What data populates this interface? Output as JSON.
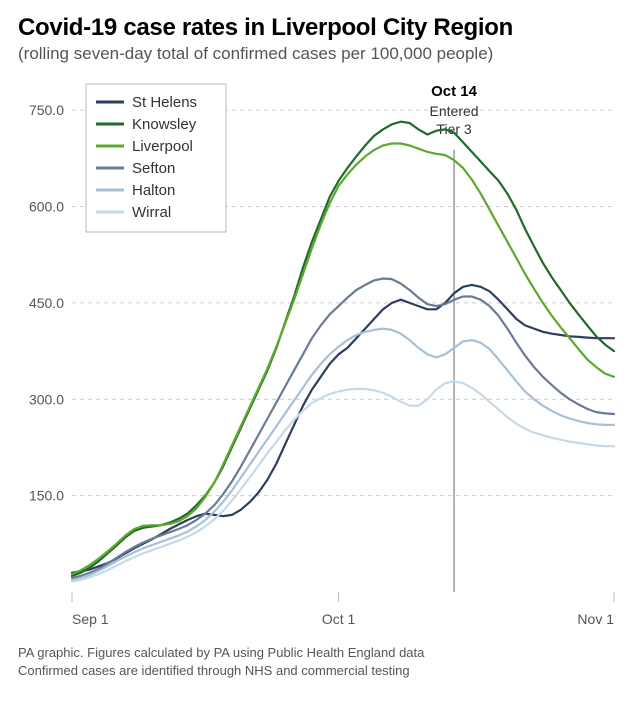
{
  "title": "Covid-19 case rates in Liverpool City Region",
  "subtitle": "(rolling seven-day total of confirmed cases per 100,000 people)",
  "chart": {
    "type": "line",
    "background_color": "#ffffff",
    "grid_color": "#cccccc",
    "axis_color": "#bbbbbb",
    "x_index_range": [
      0,
      61
    ],
    "ylim": [
      0,
      800
    ],
    "yticks": [
      150.0,
      300.0,
      450.0,
      600.0,
      750.0
    ],
    "ytick_labels": [
      "150.0",
      "300.0",
      "450.0",
      "600.0",
      "750.0"
    ],
    "xticks_idx": [
      0,
      30,
      61
    ],
    "xtick_labels": [
      "Sep 1",
      "Oct 1",
      "Nov 1"
    ],
    "annotation": {
      "x_idx": 43,
      "label_bold": "Oct 14",
      "label_sub1": "Entered",
      "label_sub2": "Tier 3",
      "line_color": "#999999"
    },
    "legend_box": {
      "border_color": "#bbbbbb",
      "fill": "#ffffff"
    },
    "line_width": 2.2,
    "series": [
      {
        "name": "St Helens",
        "color": "#2d3e5e",
        "data": [
          30,
          32,
          35,
          40,
          45,
          52,
          60,
          68,
          75,
          82,
          90,
          98,
          105,
          112,
          118,
          122,
          120,
          118,
          120,
          128,
          140,
          155,
          175,
          200,
          230,
          260,
          290,
          315,
          335,
          355,
          370,
          380,
          395,
          410,
          425,
          440,
          450,
          455,
          450,
          445,
          440,
          440,
          450,
          465,
          475,
          478,
          475,
          468,
          455,
          440,
          425,
          415,
          410,
          405,
          402,
          400,
          398,
          397,
          396,
          395,
          395,
          395
        ]
      },
      {
        "name": "Knowsley",
        "color": "#1f6b2b",
        "data": [
          25,
          30,
          38,
          48,
          60,
          72,
          85,
          95,
          100,
          102,
          104,
          108,
          114,
          122,
          135,
          150,
          170,
          195,
          225,
          255,
          285,
          315,
          345,
          380,
          420,
          460,
          505,
          545,
          580,
          615,
          640,
          660,
          678,
          695,
          710,
          720,
          728,
          732,
          730,
          720,
          712,
          718,
          720,
          715,
          700,
          685,
          670,
          655,
          640,
          620,
          595,
          565,
          538,
          512,
          490,
          470,
          450,
          432,
          415,
          398,
          385,
          375
        ]
      },
      {
        "name": "Liverpool",
        "color": "#5ea82e",
        "data": [
          28,
          34,
          42,
          52,
          63,
          75,
          88,
          98,
          103,
          104,
          104,
          106,
          110,
          118,
          130,
          148,
          170,
          198,
          228,
          258,
          288,
          318,
          348,
          382,
          418,
          455,
          495,
          535,
          572,
          605,
          632,
          650,
          665,
          678,
          688,
          695,
          698,
          698,
          695,
          690,
          685,
          682,
          680,
          672,
          660,
          642,
          620,
          595,
          570,
          545,
          520,
          495,
          472,
          450,
          430,
          412,
          395,
          378,
          362,
          350,
          340,
          335
        ]
      },
      {
        "name": "Sefton",
        "color": "#6a7b95",
        "data": [
          22,
          25,
          30,
          36,
          44,
          53,
          62,
          70,
          77,
          83,
          88,
          93,
          98,
          104,
          112,
          122,
          135,
          152,
          172,
          195,
          220,
          245,
          270,
          295,
          320,
          345,
          370,
          395,
          415,
          432,
          445,
          458,
          470,
          478,
          485,
          488,
          487,
          480,
          470,
          458,
          448,
          445,
          448,
          455,
          460,
          460,
          455,
          445,
          430,
          410,
          388,
          368,
          350,
          335,
          322,
          310,
          300,
          292,
          285,
          280,
          278,
          277
        ]
      },
      {
        "name": "Halton",
        "color": "#a7c0d8",
        "data": [
          18,
          22,
          27,
          33,
          40,
          48,
          55,
          62,
          68,
          73,
          78,
          83,
          88,
          94,
          102,
          112,
          125,
          140,
          158,
          178,
          198,
          218,
          238,
          258,
          278,
          298,
          318,
          338,
          355,
          370,
          382,
          392,
          400,
          405,
          408,
          410,
          408,
          402,
          392,
          380,
          370,
          365,
          370,
          380,
          390,
          392,
          388,
          378,
          362,
          345,
          328,
          312,
          300,
          290,
          282,
          275,
          270,
          266,
          263,
          261,
          260,
          260
        ]
      },
      {
        "name": "Wirral",
        "color": "#c7d9e8",
        "data": [
          16,
          19,
          23,
          28,
          34,
          41,
          48,
          54,
          60,
          65,
          70,
          75,
          80,
          86,
          93,
          102,
          113,
          126,
          142,
          160,
          178,
          197,
          216,
          234,
          252,
          268,
          282,
          294,
          302,
          308,
          312,
          315,
          316,
          316,
          314,
          310,
          304,
          296,
          290,
          290,
          300,
          315,
          325,
          328,
          325,
          318,
          308,
          296,
          284,
          272,
          262,
          254,
          248,
          244,
          240,
          237,
          234,
          232,
          230,
          228,
          227,
          227
        ]
      }
    ]
  },
  "footnotes": {
    "line1": "PA graphic. Figures calculated by PA using Public Health England data",
    "line2": "Confirmed cases are identified through NHS and commercial testing"
  }
}
